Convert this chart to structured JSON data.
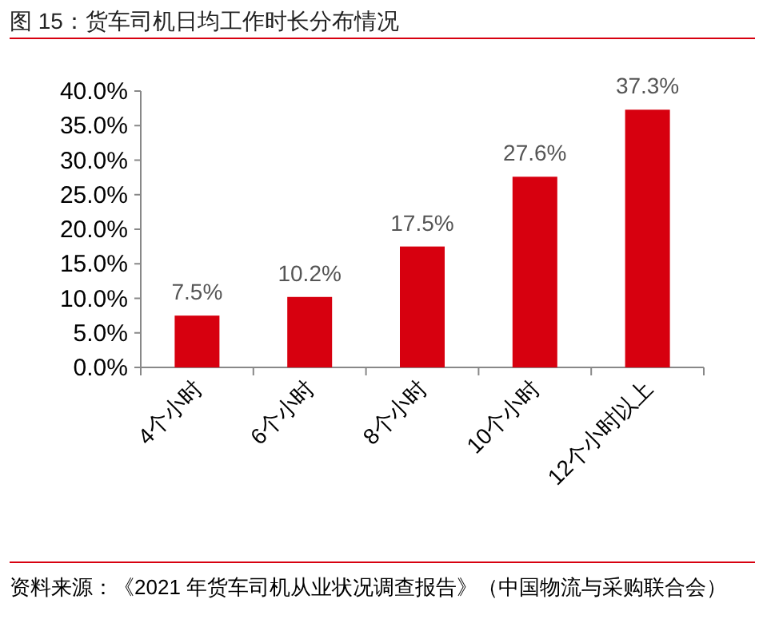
{
  "chart_data": {
    "type": "bar",
    "title": "图 15：货车司机日均工作时长分布情况",
    "categories": [
      "4个小时",
      "6个小时",
      "8个小时",
      "10个小时",
      "12个小时以上"
    ],
    "values": [
      7.5,
      10.2,
      17.5,
      27.6,
      37.3
    ],
    "value_labels": [
      "7.5%",
      "10.2%",
      "17.5%",
      "27.6%",
      "37.3%"
    ],
    "color": "#d7000f",
    "ylim": [
      0,
      40
    ],
    "yticks": [
      {
        "value": 0,
        "label": "0.0%"
      },
      {
        "value": 5,
        "label": "5.0%"
      },
      {
        "value": 10,
        "label": "10.0%"
      },
      {
        "value": 15,
        "label": "15.0%"
      },
      {
        "value": 20,
        "label": "20.0%"
      },
      {
        "value": 25,
        "label": "25.0%"
      },
      {
        "value": 30,
        "label": "30.0%"
      },
      {
        "value": 35,
        "label": "35.0%"
      },
      {
        "value": 40,
        "label": "40.0%"
      }
    ],
    "annotations": [
      "资料来源：《2021 年货车司机从业状况调查报告》（中国物流与采购联合会）"
    ]
  }
}
